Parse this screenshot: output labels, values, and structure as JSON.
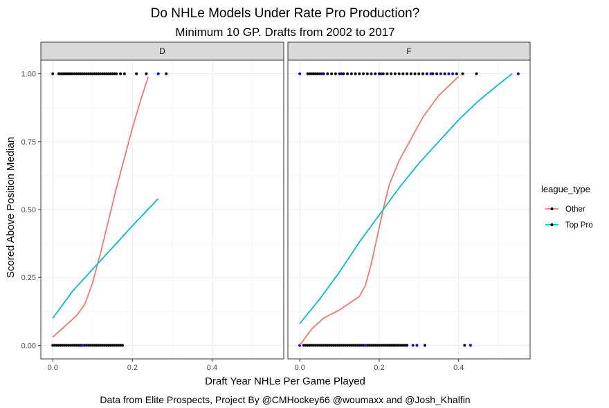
{
  "chart_data": {
    "type": "scatter",
    "title": "Do NHLe Models Under Rate Pro Production?",
    "subtitle": "Minimum 10 GP. Drafts from 2002 to 2017",
    "xlabel": "Draft Year NHLe Per Game Played",
    "ylabel": "Scored Above Position Median",
    "caption": "Data from Elite Prospects, Project By @CMHockey66 @woumaxx and @Josh_Khalfin",
    "xlim": [
      -0.03,
      0.58
    ],
    "ylim": [
      -0.05,
      1.05
    ],
    "x_ticks": [
      0.0,
      0.2,
      0.4
    ],
    "x_tick_labels": [
      "0.0",
      "0.2",
      "0.4"
    ],
    "y_ticks": [
      0.0,
      0.25,
      0.5,
      0.75,
      1.0
    ],
    "y_tick_labels": [
      "0.00",
      "0.25",
      "0.50",
      "0.75",
      "1.00"
    ],
    "grid": true,
    "legend": {
      "title": "league_type",
      "position": "right",
      "entries": [
        {
          "name": "Other",
          "color": "#F8766D"
        },
        {
          "name": "Top Pro",
          "color": "#00BFC4"
        }
      ]
    },
    "point_colors": {
      "Other": "#000000",
      "Top Pro": "#0000FF"
    },
    "facets": [
      {
        "label": "D",
        "series": [
          {
            "name": "Other",
            "type": "line",
            "color": "#F8766D",
            "x": [
              0.0,
              0.03,
              0.06,
              0.08,
              0.1,
              0.12,
              0.14,
              0.16,
              0.18,
              0.2,
              0.22,
              0.24
            ],
            "y": [
              0.03,
              0.07,
              0.11,
              0.15,
              0.23,
              0.34,
              0.46,
              0.58,
              0.69,
              0.8,
              0.9,
              0.99
            ]
          },
          {
            "name": "Top Pro",
            "type": "line",
            "color": "#00BFC4",
            "x": [
              0.0,
              0.05,
              0.1,
              0.15,
              0.2,
              0.265
            ],
            "y": [
              0.1,
              0.2,
              0.28,
              0.36,
              0.44,
              0.54
            ]
          }
        ],
        "points": [
          {
            "group": "Other",
            "y": 1,
            "x": [
              0.0,
              0.015,
              0.018,
              0.022,
              0.026,
              0.03,
              0.034,
              0.038,
              0.042,
              0.046,
              0.05,
              0.055,
              0.06,
              0.065,
              0.07,
              0.075,
              0.08,
              0.085,
              0.09,
              0.095,
              0.1,
              0.105,
              0.11,
              0.115,
              0.12,
              0.125,
              0.13,
              0.135,
              0.14,
              0.145,
              0.15,
              0.155,
              0.16,
              0.17,
              0.18,
              0.21,
              0.235,
              0.285
            ]
          },
          {
            "group": "Top Pro",
            "y": 1,
            "x": [
              0.265
            ]
          },
          {
            "group": "Other",
            "y": 0,
            "x": [
              0.0,
              0.005,
              0.01,
              0.015,
              0.02,
              0.025,
              0.03,
              0.035,
              0.04,
              0.045,
              0.05,
              0.055,
              0.06,
              0.065,
              0.07,
              0.075,
              0.08,
              0.085,
              0.09,
              0.095,
              0.1,
              0.105,
              0.11,
              0.115,
              0.12,
              0.125,
              0.13,
              0.135,
              0.14,
              0.145,
              0.15,
              0.155,
              0.16,
              0.165,
              0.17,
              0.175
            ]
          },
          {
            "group": "Top Pro",
            "y": 0,
            "x": [
              0.075
            ]
          }
        ]
      },
      {
        "label": "F",
        "series": [
          {
            "name": "Other",
            "type": "line",
            "color": "#F8766D",
            "x": [
              0.0,
              0.03,
              0.06,
              0.1,
              0.13,
              0.15,
              0.165,
              0.18,
              0.195,
              0.21,
              0.225,
              0.25,
              0.28,
              0.31,
              0.35,
              0.4
            ],
            "y": [
              0.0,
              0.06,
              0.1,
              0.13,
              0.16,
              0.18,
              0.22,
              0.3,
              0.4,
              0.5,
              0.59,
              0.68,
              0.76,
              0.84,
              0.92,
              0.99
            ]
          },
          {
            "name": "Top Pro",
            "type": "line",
            "color": "#00BFC4",
            "x": [
              0.0,
              0.05,
              0.1,
              0.15,
              0.2,
              0.25,
              0.3,
              0.35,
              0.4,
              0.45,
              0.5,
              0.535
            ],
            "y": [
              0.08,
              0.17,
              0.27,
              0.38,
              0.48,
              0.58,
              0.67,
              0.75,
              0.83,
              0.9,
              0.96,
              1.0
            ]
          }
        ],
        "points": [
          {
            "group": "Top Pro",
            "y": 1,
            "x": [
              0.0,
              0.035,
              0.055,
              0.105,
              0.205,
              0.33,
              0.355,
              0.375,
              0.385,
              0.55
            ]
          },
          {
            "group": "Other",
            "y": 1,
            "x": [
              0.02,
              0.025,
              0.03,
              0.035,
              0.04,
              0.045,
              0.05,
              0.06,
              0.07,
              0.08,
              0.09,
              0.1,
              0.11,
              0.12,
              0.13,
              0.14,
              0.15,
              0.16,
              0.17,
              0.18,
              0.19,
              0.2,
              0.21,
              0.22,
              0.23,
              0.24,
              0.25,
              0.26,
              0.27,
              0.28,
              0.29,
              0.3,
              0.31,
              0.32,
              0.335,
              0.345,
              0.365,
              0.395,
              0.41,
              0.445
            ]
          },
          {
            "group": "Other",
            "y": 0,
            "x": [
              0.0,
              0.01,
              0.015,
              0.02,
              0.025,
              0.03,
              0.035,
              0.04,
              0.045,
              0.05,
              0.055,
              0.06,
              0.065,
              0.07,
              0.075,
              0.08,
              0.085,
              0.09,
              0.095,
              0.1,
              0.105,
              0.11,
              0.115,
              0.12,
              0.125,
              0.13,
              0.135,
              0.14,
              0.145,
              0.15,
              0.155,
              0.16,
              0.165,
              0.17,
              0.175,
              0.18,
              0.185,
              0.19,
              0.195,
              0.2,
              0.205,
              0.21,
              0.215,
              0.22,
              0.225,
              0.23,
              0.235,
              0.24,
              0.245,
              0.25,
              0.255,
              0.26,
              0.265,
              0.27,
              0.315,
              0.415
            ]
          },
          {
            "group": "Top Pro",
            "y": 0,
            "x": [
              0.0,
              0.165,
              0.285,
              0.295,
              0.43
            ]
          }
        ]
      }
    ]
  }
}
